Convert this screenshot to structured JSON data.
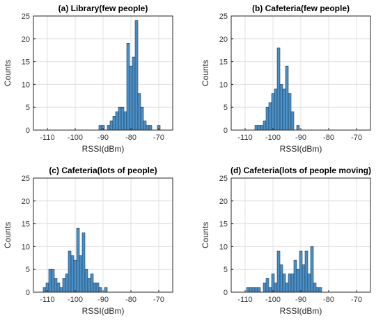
{
  "colors": {
    "bar_fill": "#4a90c7",
    "bar_edge": "#1f3b57",
    "grid": "#e1e1e1"
  },
  "chart_data": [
    {
      "type": "bar",
      "title": "(a) Library(few people)",
      "xlabel": "RSSI(dBm)",
      "ylabel": "Counts",
      "xlim": [
        -115,
        -65
      ],
      "ylim": [
        0,
        25
      ],
      "xticks": [
        -110,
        -100,
        -90,
        -80,
        -70
      ],
      "yticks": [
        0,
        5,
        10,
        15,
        20,
        25
      ],
      "grid": true,
      "bin_width": 1,
      "x": [
        -91,
        -90,
        -88,
        -87,
        -86,
        -85,
        -84,
        -83,
        -82,
        -81,
        -80,
        -79,
        -78,
        -77,
        -76,
        -75,
        -74,
        -73,
        -70
      ],
      "values": [
        1,
        1,
        1,
        2,
        3,
        4,
        5,
        5,
        4,
        19,
        14,
        16,
        24,
        8,
        5,
        2,
        1,
        1,
        1
      ]
    },
    {
      "type": "bar",
      "title": "(b) Cafeteria(few people)",
      "xlabel": "RSSI(dBm)",
      "ylabel": "Counts",
      "xlim": [
        -115,
        -65
      ],
      "ylim": [
        0,
        25
      ],
      "xticks": [
        -110,
        -100,
        -90,
        -80,
        -70
      ],
      "yticks": [
        0,
        5,
        10,
        15,
        20,
        25
      ],
      "grid": true,
      "bin_width": 1,
      "x": [
        -106,
        -105,
        -104,
        -103,
        -102,
        -101,
        -100,
        -99,
        -98,
        -97,
        -96,
        -95,
        -94,
        -93,
        -91
      ],
      "values": [
        1,
        1,
        1,
        2,
        5,
        6,
        8,
        9,
        18,
        10,
        9,
        14,
        8,
        4,
        1
      ]
    },
    {
      "type": "bar",
      "title": "(c) Cafeteria(lots of people)",
      "xlabel": "RSSI(dBm)",
      "ylabel": "Counts",
      "xlim": [
        -115,
        -65
      ],
      "ylim": [
        0,
        25
      ],
      "xticks": [
        -110,
        -100,
        -90,
        -80,
        -70
      ],
      "yticks": [
        0,
        5,
        10,
        15,
        20,
        25
      ],
      "grid": true,
      "bin_width": 1,
      "x": [
        -111,
        -110,
        -109,
        -108,
        -107,
        -106,
        -105,
        -104,
        -103,
        -102,
        -101,
        -100,
        -99,
        -98,
        -97,
        -96,
        -95,
        -94,
        -93,
        -92,
        -91,
        -89
      ],
      "values": [
        1,
        2,
        5,
        5,
        3,
        2,
        1,
        3,
        4,
        9,
        8,
        7,
        14,
        8,
        13,
        5,
        3,
        4,
        2,
        2,
        1,
        1
      ]
    },
    {
      "type": "bar",
      "title": "(d) Cafeteria(lots of people moving)",
      "xlabel": "RSSI(dBm)",
      "ylabel": "Counts",
      "xlim": [
        -115,
        -65
      ],
      "ylim": [
        0,
        25
      ],
      "xticks": [
        -110,
        -100,
        -90,
        -80,
        -70
      ],
      "yticks": [
        0,
        5,
        10,
        15,
        20,
        25
      ],
      "grid": true,
      "bin_width": 1,
      "x": [
        -109,
        -108,
        -107,
        -106,
        -105,
        -103,
        -102,
        -101,
        -100,
        -99,
        -98,
        -97,
        -96,
        -95,
        -94,
        -93,
        -92,
        -91,
        -90,
        -89,
        -88,
        -87,
        -86,
        -85,
        -84,
        -83
      ],
      "values": [
        1,
        1,
        1,
        1,
        1,
        2,
        3,
        1,
        4,
        2,
        9,
        6,
        4,
        2,
        4,
        4,
        7,
        5,
        9,
        6,
        9,
        4,
        10,
        2,
        1,
        1
      ]
    }
  ]
}
